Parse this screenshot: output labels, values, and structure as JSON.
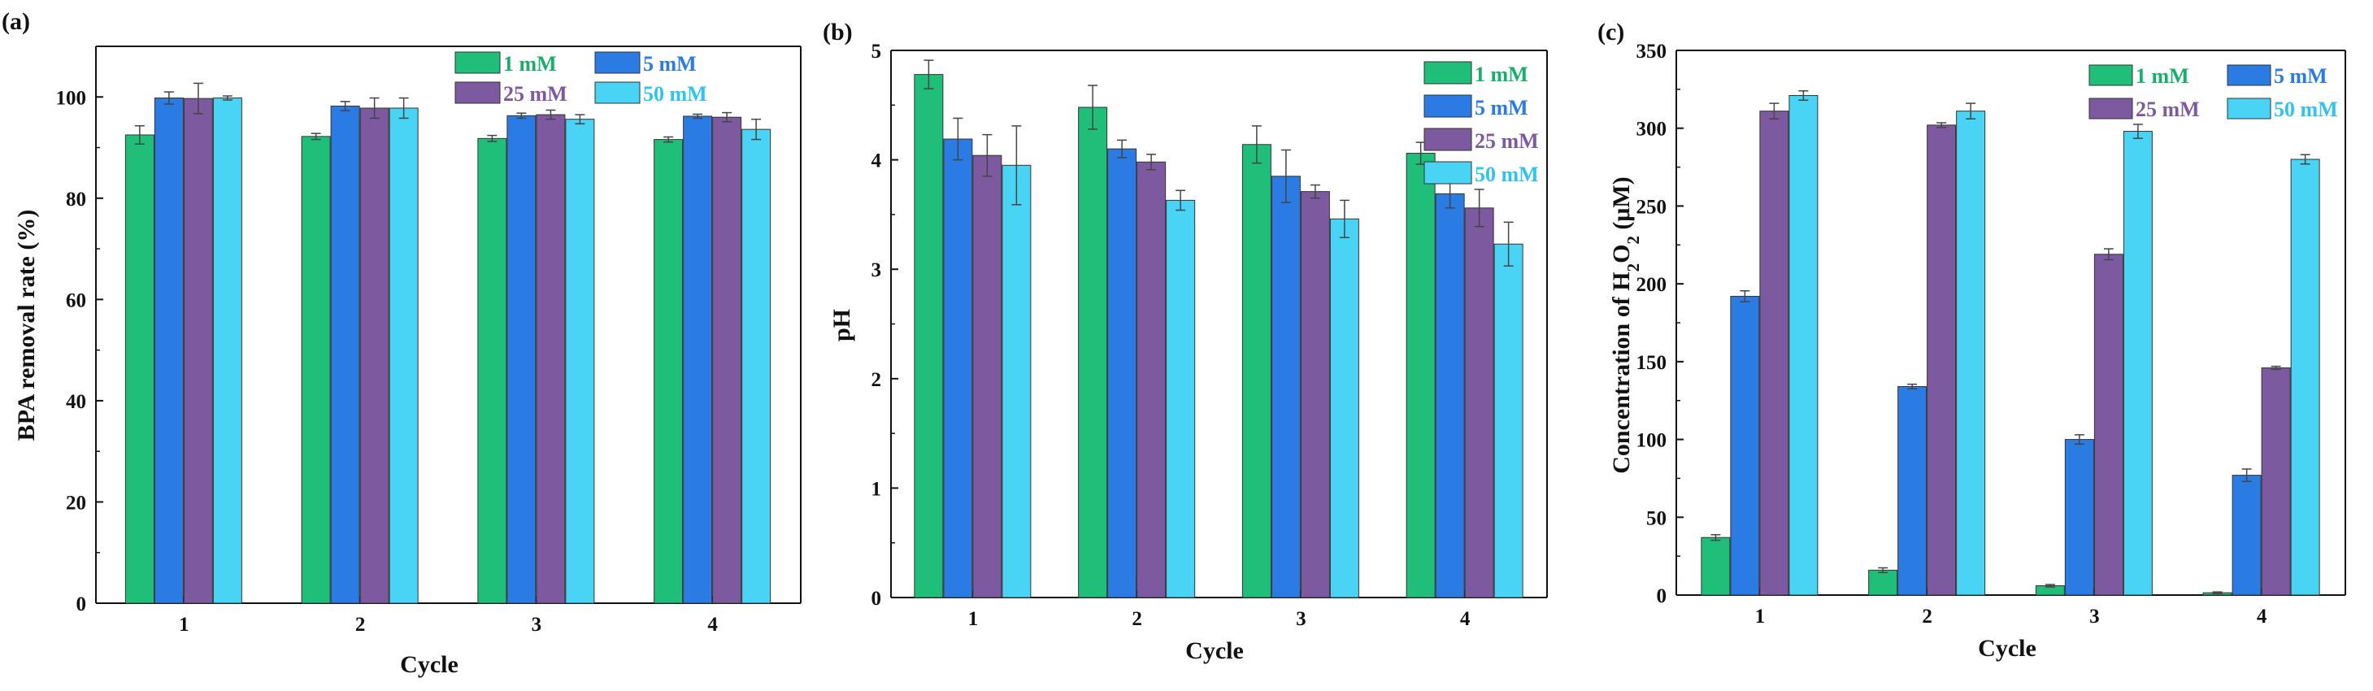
{
  "figure": {
    "panels": [
      {
        "label": "(a)"
      },
      {
        "label": "(b)"
      },
      {
        "label": "(c)"
      }
    ]
  },
  "chart_data": [
    {
      "type": "bar",
      "panel_label": "(a)",
      "title": "",
      "xlabel": "Cycle",
      "ylabel": "BPA removal rate (%)",
      "categories": [
        "1",
        "2",
        "3",
        "4"
      ],
      "ylim": [
        0,
        110
      ],
      "yticks": [
        0,
        20,
        40,
        60,
        80,
        100
      ],
      "legend_columns": 2,
      "legend_position": "top-right",
      "series": [
        {
          "name": "1 mM",
          "color": "#1fbf7a",
          "label_color": "#1aae6c",
          "values": [
            92.5,
            92.2,
            91.8,
            91.6
          ],
          "errors": [
            1.8,
            0.6,
            0.6,
            0.5
          ]
        },
        {
          "name": "5 mM",
          "color": "#2b7be4",
          "label_color": "#2b7be4",
          "values": [
            99.8,
            98.2,
            96.3,
            96.2
          ],
          "errors": [
            1.2,
            0.9,
            0.5,
            0.4
          ]
        },
        {
          "name": "25 mM",
          "color": "#7d5a9f",
          "label_color": "#7d5a9f",
          "values": [
            99.7,
            97.8,
            96.5,
            96.0
          ],
          "errors": [
            3.0,
            2.0,
            0.9,
            0.9
          ]
        },
        {
          "name": "50 mM",
          "color": "#49d3f5",
          "label_color": "#2fc4ee",
          "values": [
            99.8,
            97.8,
            95.6,
            93.6
          ],
          "errors": [
            0.4,
            2.0,
            0.9,
            2.0
          ]
        }
      ]
    },
    {
      "type": "bar",
      "panel_label": "(b)",
      "title": "",
      "xlabel": "Cycle",
      "ylabel": "pH",
      "categories": [
        "1",
        "2",
        "3",
        "4"
      ],
      "ylim": [
        0,
        5
      ],
      "yticks": [
        0,
        1,
        2,
        3,
        4,
        5
      ],
      "legend_columns": 1,
      "legend_position": "top-right",
      "series": [
        {
          "name": "1 mM",
          "color": "#1fbf7a",
          "label_color": "#1aae6c",
          "values": [
            4.78,
            4.48,
            4.14,
            4.06
          ],
          "errors": [
            0.13,
            0.2,
            0.17,
            0.1
          ]
        },
        {
          "name": "5 mM",
          "color": "#2b7be4",
          "label_color": "#2b7be4",
          "values": [
            4.19,
            4.1,
            3.85,
            3.69
          ],
          "errors": [
            0.19,
            0.08,
            0.24,
            0.13
          ]
        },
        {
          "name": "25 mM",
          "color": "#7d5a9f",
          "label_color": "#7d5a9f",
          "values": [
            4.04,
            3.98,
            3.71,
            3.56
          ],
          "errors": [
            0.19,
            0.07,
            0.06,
            0.17
          ]
        },
        {
          "name": "50 mM",
          "color": "#49d3f5",
          "label_color": "#2fc4ee",
          "values": [
            3.95,
            3.63,
            3.46,
            3.23
          ],
          "errors": [
            0.36,
            0.09,
            0.17,
            0.2
          ]
        }
      ]
    },
    {
      "type": "bar",
      "panel_label": "(c)",
      "title": "",
      "xlabel": "Cycle",
      "ylabel_prefix": "Concentration of H",
      "ylabel_sub1": "2",
      "ylabel_mid": "O",
      "ylabel_sub2": "2",
      "ylabel_suffix": " (μM)",
      "categories": [
        "1",
        "2",
        "3",
        "4"
      ],
      "ylim": [
        0,
        350
      ],
      "yticks": [
        0,
        50,
        100,
        150,
        200,
        250,
        300,
        350
      ],
      "legend_columns": 2,
      "legend_position": "top-right",
      "series": [
        {
          "name": "1 mM",
          "color": "#1fbf7a",
          "label_color": "#1aae6c",
          "values": [
            37,
            16,
            6,
            1.5
          ],
          "errors": [
            1.8,
            1.5,
            0.8,
            0.5
          ]
        },
        {
          "name": "5 mM",
          "color": "#2b7be4",
          "label_color": "#2b7be4",
          "values": [
            192,
            134,
            100,
            77
          ],
          "errors": [
            3.5,
            1.5,
            3.0,
            4.0
          ]
        },
        {
          "name": "25 mM",
          "color": "#7d5a9f",
          "label_color": "#7d5a9f",
          "values": [
            311,
            302,
            219,
            146
          ],
          "errors": [
            5.0,
            1.5,
            3.5,
            1.0
          ]
        },
        {
          "name": "50 mM",
          "color": "#49d3f5",
          "label_color": "#2fc4ee",
          "values": [
            321,
            311,
            298,
            280
          ],
          "errors": [
            3.0,
            5.0,
            4.5,
            3.0
          ]
        }
      ]
    }
  ]
}
